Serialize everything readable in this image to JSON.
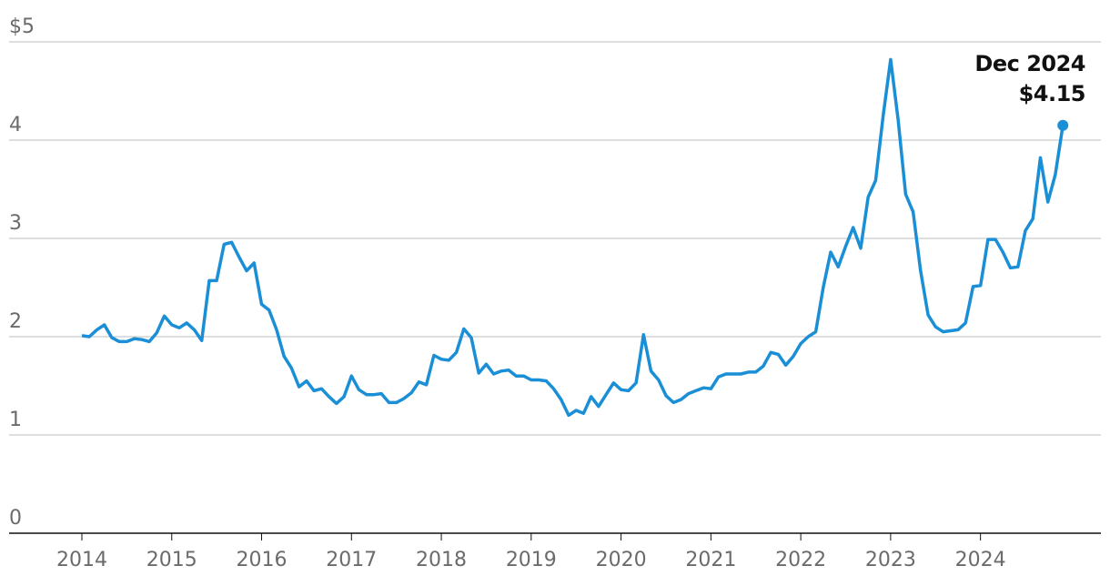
{
  "chart_data": {
    "type": "line",
    "color": "#1a8fd6",
    "x": [
      2014,
      2014.083,
      2014.167,
      2014.25,
      2014.333,
      2014.417,
      2014.5,
      2014.583,
      2014.667,
      2014.75,
      2014.833,
      2014.917,
      2015,
      2015.083,
      2015.167,
      2015.25,
      2015.333,
      2015.417,
      2015.5,
      2015.583,
      2015.667,
      2015.75,
      2015.833,
      2015.917,
      2016,
      2016.083,
      2016.167,
      2016.25,
      2016.333,
      2016.417,
      2016.5,
      2016.583,
      2016.667,
      2016.75,
      2016.833,
      2016.917,
      2017,
      2017.083,
      2017.167,
      2017.25,
      2017.333,
      2017.417,
      2017.5,
      2017.583,
      2017.667,
      2017.75,
      2017.833,
      2017.917,
      2018,
      2018.083,
      2018.167,
      2018.25,
      2018.333,
      2018.417,
      2018.5,
      2018.583,
      2018.667,
      2018.75,
      2018.833,
      2018.917,
      2019,
      2019.083,
      2019.167,
      2019.25,
      2019.333,
      2019.417,
      2019.5,
      2019.583,
      2019.667,
      2019.75,
      2019.833,
      2019.917,
      2020,
      2020.083,
      2020.167,
      2020.25,
      2020.333,
      2020.417,
      2020.5,
      2020.583,
      2020.667,
      2020.75,
      2020.833,
      2020.917,
      2021,
      2021.083,
      2021.167,
      2021.25,
      2021.333,
      2021.417,
      2021.5,
      2021.583,
      2021.667,
      2021.75,
      2021.833,
      2021.917,
      2022,
      2022.083,
      2022.167,
      2022.25,
      2022.333,
      2022.417,
      2022.5,
      2022.583,
      2022.667,
      2022.75,
      2022.833,
      2022.917,
      2023,
      2023.083,
      2023.167,
      2023.25,
      2023.333,
      2023.417,
      2023.5,
      2023.583,
      2023.667,
      2023.75,
      2023.833,
      2023.917,
      2024,
      2024.083,
      2024.167,
      2024.25,
      2024.333,
      2024.417,
      2024.5,
      2024.583,
      2024.667,
      2024.75,
      2024.833,
      2024.917
    ],
    "values": [
      2.01,
      2.0,
      2.07,
      2.12,
      1.99,
      1.95,
      1.95,
      1.98,
      1.97,
      1.95,
      2.04,
      2.21,
      2.12,
      2.09,
      2.14,
      2.07,
      1.96,
      2.57,
      2.57,
      2.94,
      2.96,
      2.81,
      2.67,
      2.75,
      2.33,
      2.27,
      2.07,
      1.8,
      1.68,
      1.49,
      1.55,
      1.45,
      1.47,
      1.39,
      1.32,
      1.39,
      1.6,
      1.46,
      1.41,
      1.41,
      1.42,
      1.33,
      1.33,
      1.37,
      1.43,
      1.54,
      1.51,
      1.81,
      1.77,
      1.76,
      1.84,
      2.08,
      1.99,
      1.63,
      1.72,
      1.62,
      1.65,
      1.66,
      1.6,
      1.6,
      1.56,
      1.56,
      1.55,
      1.47,
      1.36,
      1.2,
      1.25,
      1.22,
      1.39,
      1.29,
      1.41,
      1.53,
      1.46,
      1.45,
      1.53,
      2.02,
      1.65,
      1.56,
      1.4,
      1.33,
      1.36,
      1.42,
      1.45,
      1.48,
      1.47,
      1.59,
      1.62,
      1.62,
      1.62,
      1.64,
      1.64,
      1.7,
      1.84,
      1.82,
      1.71,
      1.8,
      1.93,
      2.0,
      2.05,
      2.5,
      2.86,
      2.71,
      2.92,
      3.11,
      2.9,
      3.42,
      3.59,
      4.25,
      4.82,
      4.21,
      3.45,
      3.27,
      2.67,
      2.22,
      2.1,
      2.05,
      2.06,
      2.07,
      2.14,
      2.51,
      2.52,
      2.99,
      2.99,
      2.86,
      2.7,
      2.71,
      3.08,
      3.2,
      3.82,
      3.37,
      3.65,
      4.15
    ],
    "xlim": [
      2013.19,
      2025.34
    ],
    "xticks": [
      2014,
      2015,
      2016,
      2017,
      2018,
      2019,
      2020,
      2021,
      2022,
      2023,
      2024
    ],
    "ylim": [
      0,
      5
    ],
    "yticks": [
      0,
      1,
      2,
      3,
      4,
      {
        "value": 5,
        "label": "$5"
      }
    ],
    "grid": true,
    "annotation": {
      "text": "Dec 2024",
      "value_label": "$4.15"
    }
  }
}
